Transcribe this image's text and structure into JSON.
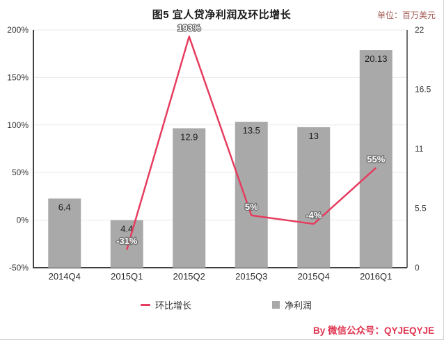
{
  "header": {
    "title": "图5  宜人贷净利润及环比增长",
    "unit_label": "单位：百万美元"
  },
  "chart_data": {
    "type": "bar+line combo",
    "categories": [
      "2014Q4",
      "2015Q1",
      "2015Q2",
      "2015Q3",
      "2015Q4",
      "2016Q1"
    ],
    "series": [
      {
        "name": "净利润",
        "type": "bar",
        "axis": "right",
        "values": [
          6.4,
          4.4,
          12.9,
          13.5,
          13,
          20.13
        ],
        "labels": [
          "6.4",
          "4.4",
          "12.9",
          "13.5",
          "13",
          "20.13"
        ],
        "color": "#a9a9a9"
      },
      {
        "name": "环比增长",
        "type": "line",
        "axis": "left",
        "values": [
          null,
          -31,
          193,
          5,
          -4,
          55
        ],
        "labels": [
          null,
          "-31%",
          "193%",
          "5%",
          "-4%",
          "55%"
        ],
        "color": "#e63c5f"
      }
    ],
    "left_axis": {
      "ticks": [
        "200%",
        "150%",
        "100%",
        "50%",
        "0%",
        "-50%"
      ],
      "min": -50,
      "max": 200
    },
    "right_axis": {
      "ticks": [
        "22",
        "16.5",
        "11",
        "5.5",
        "0"
      ],
      "min": 0,
      "max": 22
    },
    "grid": true,
    "legend_position": "bottom"
  },
  "legend": {
    "growth_label": "环比增长",
    "profit_label": "净利润"
  },
  "footer": {
    "credit": "By  微信公众号：QYJEQYJE"
  }
}
